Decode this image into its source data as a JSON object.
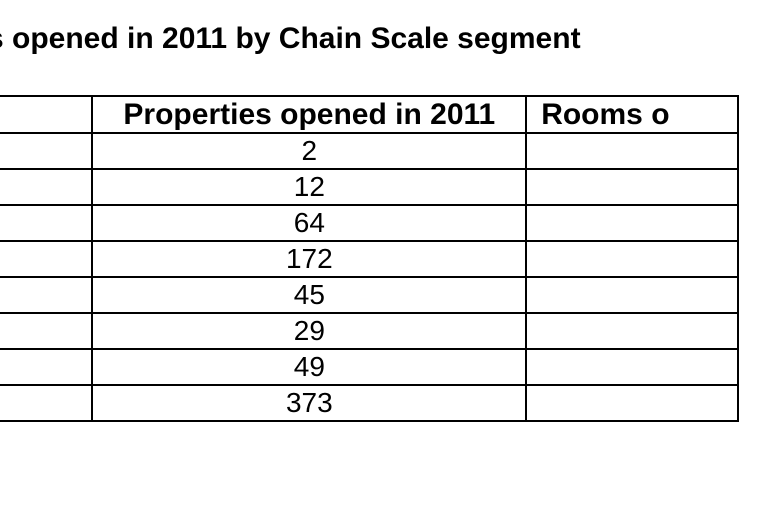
{
  "page": {
    "title": "s opened in 2011 by Chain Scale segment"
  },
  "colors": {
    "text": "#000000",
    "border": "#000000",
    "background": "#ffffff"
  },
  "table": {
    "headers": {
      "segment": "",
      "properties": "Properties opened in 2011",
      "rooms": "Rooms o"
    },
    "rows": [
      {
        "segment": "",
        "properties": "2",
        "rooms": ""
      },
      {
        "segment": "",
        "properties": "12",
        "rooms": ""
      },
      {
        "segment": "",
        "properties": "64",
        "rooms": ""
      },
      {
        "segment": "",
        "properties": "172",
        "rooms": ""
      },
      {
        "segment": "",
        "properties": "45",
        "rooms": ""
      },
      {
        "segment": "",
        "properties": "29",
        "rooms": ""
      },
      {
        "segment": "",
        "properties": "49",
        "rooms": ""
      },
      {
        "segment": "",
        "properties": "373",
        "rooms": ""
      }
    ]
  },
  "chart_data": {
    "type": "table",
    "title": "s opened in 2011 by Chain Scale segment",
    "columns": [
      "",
      "Properties opened in 2011",
      "Rooms o"
    ],
    "properties_opened_in_2011": [
      2,
      12,
      64,
      172,
      45,
      29,
      49,
      373
    ]
  }
}
